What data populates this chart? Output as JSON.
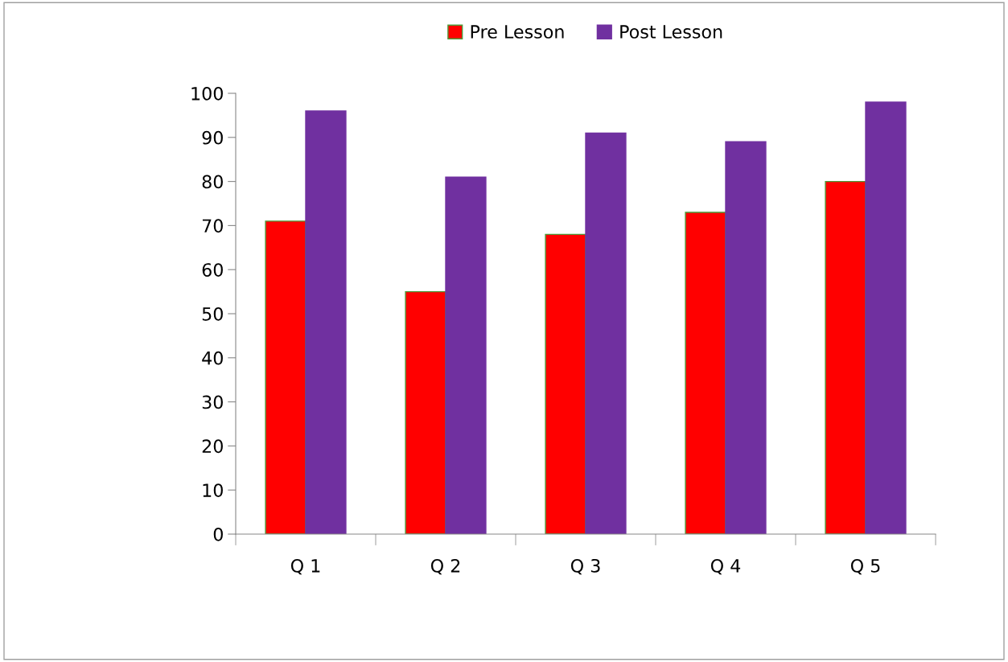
{
  "chart_data": {
    "type": "bar",
    "categories": [
      "Q 1",
      "Q 2",
      "Q 3",
      "Q 4",
      "Q 5"
    ],
    "series": [
      {
        "name": "Pre Lesson",
        "color": "#ff0000",
        "values": [
          71,
          55,
          68,
          73,
          80
        ]
      },
      {
        "name": "Post Lesson",
        "color": "#7030a0",
        "values": [
          96,
          81,
          91,
          89,
          98
        ]
      }
    ],
    "ylim": [
      0,
      100
    ],
    "yticks": [
      0,
      10,
      20,
      30,
      40,
      50,
      60,
      70,
      80,
      90,
      100
    ],
    "grid": false,
    "legend": "top"
  }
}
